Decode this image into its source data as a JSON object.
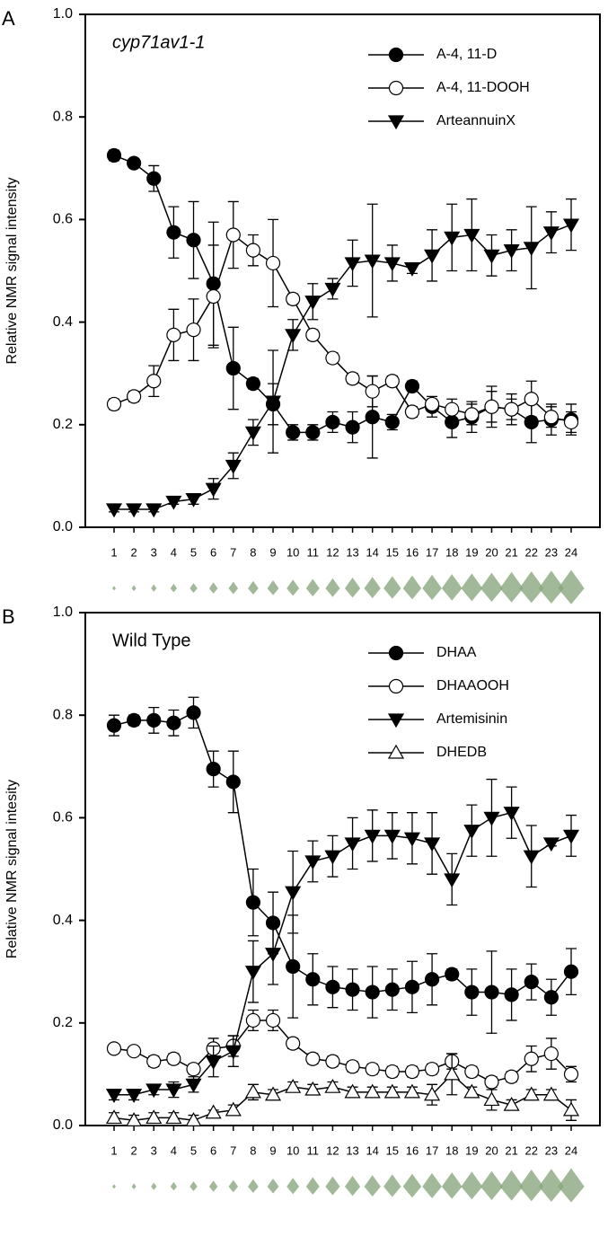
{
  "chart_data": [
    {
      "type": "line",
      "panel_label": "A",
      "annotation": "cyp71av1-1",
      "ylabel": "Relative NMR signal intensity",
      "categories": [
        "1",
        "2",
        "3",
        "4",
        "5",
        "6",
        "7",
        "8",
        "9",
        "10",
        "11",
        "12",
        "13",
        "14",
        "15",
        "16",
        "17",
        "18",
        "19",
        "20",
        "21",
        "22",
        "23",
        "24"
      ],
      "ylim": [
        0,
        1
      ],
      "yticks": [
        {
          "value": 0,
          "label": "0.0"
        },
        {
          "value": 0.2,
          "label": "0.2"
        },
        {
          "value": 0.4,
          "label": "0.4"
        },
        {
          "value": 0.6,
          "label": "0.6"
        },
        {
          "value": 0.8,
          "label": "0.8"
        },
        {
          "value": 1,
          "label": "1.0"
        }
      ],
      "legend": "upper right",
      "series": [
        {
          "name": "A-4, 11-D",
          "color": "#000000",
          "marker": "filled-circle",
          "values": [
            0.725,
            0.71,
            0.68,
            0.575,
            0.56,
            0.475,
            0.31,
            0.28,
            0.24,
            0.185,
            0.185,
            0.205,
            0.195,
            0.215,
            0.205,
            0.275,
            0.235,
            0.205,
            0.215,
            0.235,
            0.23,
            0.205,
            0.21,
            0.21
          ],
          "errors": [
            0.01,
            0.005,
            0.025,
            0.05,
            0.075,
            0.12,
            0.08,
            0.01,
            0.04,
            0.015,
            0.015,
            0.02,
            0.03,
            0.08,
            0.015,
            0.01,
            0.02,
            0.03,
            0.03,
            0.04,
            0.03,
            0.04,
            0.03,
            0.03
          ]
        },
        {
          "name": "A-4, 11-DOOH",
          "color": "#000000",
          "marker": "open-circle",
          "values": [
            0.24,
            0.255,
            0.285,
            0.375,
            0.385,
            0.45,
            0.57,
            0.54,
            0.515,
            0.445,
            0.375,
            0.33,
            0.29,
            0.265,
            0.285,
            0.225,
            0.24,
            0.23,
            0.22,
            0.235,
            0.23,
            0.25,
            0.215,
            0.205
          ],
          "errors": [
            0.01,
            0.01,
            0.03,
            0.05,
            0.06,
            0.1,
            0.065,
            0.03,
            0.085,
            0.01,
            0.01,
            0.01,
            0.01,
            0.03,
            0.01,
            0.01,
            0.01,
            0.02,
            0.02,
            0.03,
            0.02,
            0.035,
            0.02,
            0.02
          ]
        },
        {
          "name": "ArteannuinX",
          "color": "#000000",
          "marker": "filled-triangle-down",
          "values": [
            0.035,
            0.035,
            0.035,
            0.05,
            0.055,
            0.075,
            0.12,
            0.185,
            0.245,
            0.375,
            0.44,
            0.465,
            0.515,
            0.52,
            0.515,
            0.505,
            0.53,
            0.565,
            0.57,
            0.53,
            0.54,
            0.545,
            0.575,
            0.59
          ],
          "errors": [
            0.005,
            0.005,
            0.005,
            0.005,
            0.01,
            0.02,
            0.025,
            0.025,
            0.1,
            0.03,
            0.035,
            0.02,
            0.045,
            0.11,
            0.035,
            0.01,
            0.05,
            0.065,
            0.07,
            0.04,
            0.04,
            0.08,
            0.04,
            0.05
          ]
        }
      ]
    },
    {
      "type": "line",
      "panel_label": "B",
      "annotation": "Wild Type",
      "ylabel": "Relative NMR signal intesity",
      "categories": [
        "1",
        "2",
        "3",
        "4",
        "5",
        "6",
        "7",
        "8",
        "9",
        "10",
        "11",
        "12",
        "13",
        "14",
        "15",
        "16",
        "17",
        "18",
        "19",
        "20",
        "21",
        "22",
        "23",
        "24"
      ],
      "ylim": [
        0,
        1
      ],
      "yticks": [
        {
          "value": 0,
          "label": "0.0"
        },
        {
          "value": 0.2,
          "label": "0.2"
        },
        {
          "value": 0.4,
          "label": "0.4"
        },
        {
          "value": 0.6,
          "label": "0.6"
        },
        {
          "value": 0.8,
          "label": "0.8"
        },
        {
          "value": 1,
          "label": "1.0"
        }
      ],
      "legend": "upper right",
      "series": [
        {
          "name": "DHAA",
          "color": "#000000",
          "marker": "filled-circle",
          "values": [
            0.78,
            0.79,
            0.79,
            0.785,
            0.805,
            0.695,
            0.67,
            0.435,
            0.395,
            0.31,
            0.285,
            0.27,
            0.265,
            0.26,
            0.265,
            0.27,
            0.285,
            0.295,
            0.26,
            0.26,
            0.255,
            0.28,
            0.25,
            0.3
          ],
          "errors": [
            0.02,
            0.01,
            0.025,
            0.025,
            0.03,
            0.035,
            0.06,
            0.065,
            0.06,
            0.1,
            0.05,
            0.04,
            0.04,
            0.05,
            0.04,
            0.05,
            0.05,
            0.01,
            0.045,
            0.08,
            0.05,
            0.035,
            0.035,
            0.045
          ]
        },
        {
          "name": "DHAAOOH",
          "color": "#000000",
          "marker": "open-circle",
          "values": [
            0.15,
            0.145,
            0.125,
            0.13,
            0.11,
            0.15,
            0.155,
            0.205,
            0.205,
            0.16,
            0.13,
            0.125,
            0.115,
            0.11,
            0.105,
            0.105,
            0.11,
            0.125,
            0.105,
            0.085,
            0.095,
            0.13,
            0.14,
            0.1
          ],
          "errors": [
            0.005,
            0.005,
            0.01,
            0.01,
            0.01,
            0.02,
            0.02,
            0.02,
            0.02,
            0.01,
            0.01,
            0.01,
            0.01,
            0.01,
            0.01,
            0.01,
            0.01,
            0.015,
            0.01,
            0.01,
            0.01,
            0.025,
            0.03,
            0.015
          ]
        },
        {
          "name": "Artemisinin",
          "color": "#000000",
          "marker": "filled-triangle-down",
          "values": [
            0.06,
            0.06,
            0.07,
            0.07,
            0.08,
            0.125,
            0.145,
            0.3,
            0.335,
            0.455,
            0.515,
            0.525,
            0.55,
            0.565,
            0.565,
            0.56,
            0.55,
            0.48,
            0.575,
            0.6,
            0.61,
            0.525,
            0.55,
            0.565
          ],
          "errors": [
            0.01,
            0.01,
            0.01,
            0.015,
            0.015,
            0.03,
            0.03,
            0.06,
            0.06,
            0.08,
            0.04,
            0.04,
            0.05,
            0.05,
            0.045,
            0.05,
            0.06,
            0.05,
            0.05,
            0.075,
            0.05,
            0.06,
            0.005,
            0.04
          ]
        },
        {
          "name": "DHEDB",
          "color": "#000000",
          "marker": "open-triangle-up",
          "values": [
            0.015,
            0.01,
            0.015,
            0.015,
            0.01,
            0.025,
            0.03,
            0.065,
            0.06,
            0.075,
            0.07,
            0.075,
            0.065,
            0.065,
            0.065,
            0.065,
            0.06,
            0.1,
            0.065,
            0.05,
            0.04,
            0.06,
            0.06,
            0.03
          ],
          "errors": [
            0.01,
            0.01,
            0.01,
            0.01,
            0.01,
            0.005,
            0.01,
            0.015,
            0.01,
            0.01,
            0.01,
            0.01,
            0.01,
            0.01,
            0.01,
            0.01,
            0.02,
            0.04,
            0.01,
            0.02,
            0.01,
            0.01,
            0.01,
            0.02
          ]
        }
      ]
    }
  ]
}
